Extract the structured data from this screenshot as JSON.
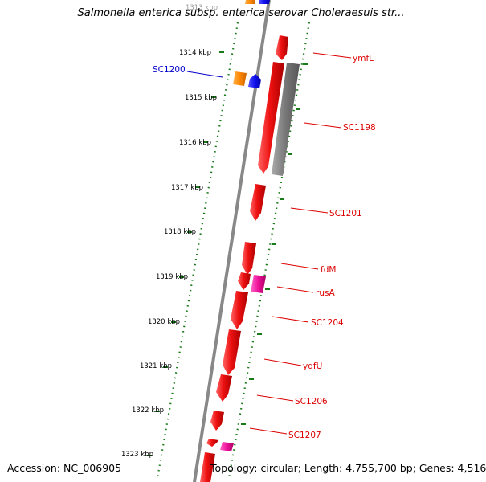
{
  "title": "Salmonella enterica subsp. enterica serovar Choleraesuis str...",
  "footer": {
    "accession": "Accession: NC_006905",
    "summary": "Topology: circular; Length: 4,755,700 bp; Genes: 4,516"
  },
  "scale": {
    "ticks": [
      "1313 kbp",
      "1314 kbp",
      "1315 kbp",
      "1316 kbp",
      "1317 kbp",
      "1318 kbp",
      "1319 kbp",
      "1320 kbp",
      "1321 kbp",
      "1322 kbp",
      "1323 kbp"
    ]
  },
  "gene_labels": [
    "SC1200",
    "ymfL",
    "SC1198",
    "SC1201",
    "fdM",
    "rusA",
    "SC1204",
    "ydfU",
    "SC1206",
    "SC1207"
  ],
  "colors": {
    "label_red": "#dd0000",
    "label_blue": "#0000cc",
    "feature_red": "#ee1111",
    "feature_gray": "#777777",
    "feature_orange": "#ff8800",
    "feature_blue": "#1111ee",
    "feature_pink": "#ee1199",
    "ring_gray": "#888888",
    "ring_green": "#1a7a1a"
  }
}
